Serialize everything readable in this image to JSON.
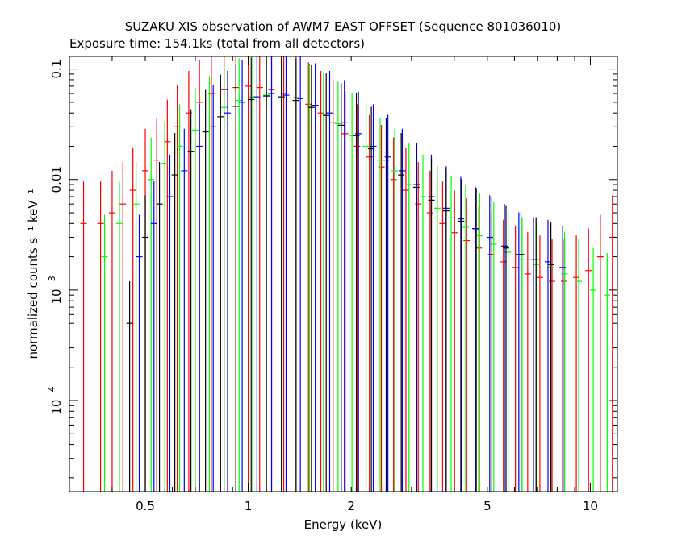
{
  "chart_data": {
    "type": "scatter",
    "title": "SUZAKU XIS observation of AWM7 EAST OFFSET (Sequence 801036010)",
    "subtitle": "Exposure time: 154.1ks (total from all detectors)",
    "xlabel": "Energy (keV)",
    "ylabel": "normalized counts s⁻¹ keV⁻¹",
    "xscale": "log",
    "yscale": "log",
    "xlim": [
      0.3,
      12
    ],
    "ylim": [
      1.5e-05,
      0.13
    ],
    "x_ticks": [
      {
        "value": 0.5,
        "label": "0.5"
      },
      {
        "value": 1,
        "label": "1"
      },
      {
        "value": 2,
        "label": "2"
      },
      {
        "value": 5,
        "label": "5"
      },
      {
        "value": 10,
        "label": "10"
      }
    ],
    "y_ticks": [
      {
        "value": 0.1,
        "label": "0.1",
        "exp": ""
      },
      {
        "value": 0.01,
        "label": "0.01",
        "exp": ""
      },
      {
        "value": 0.001,
        "label": "10",
        "exp": "−3"
      },
      {
        "value": 0.0001,
        "label": "10",
        "exp": "−4"
      }
    ],
    "series": [
      {
        "color": "#ff0000",
        "x": [
          0.33,
          0.37,
          0.4,
          0.43,
          0.46,
          0.5,
          0.54,
          0.58,
          0.62,
          0.67,
          0.72,
          0.78,
          0.85,
          0.92,
          1.0,
          1.08,
          1.17,
          1.27,
          1.38,
          1.5,
          1.63,
          1.77,
          1.92,
          2.08,
          2.26,
          2.45,
          2.66,
          2.89,
          3.14,
          3.4,
          3.7,
          4.01,
          4.35,
          4.72,
          5.13,
          5.57,
          6.04,
          6.56,
          7.12,
          7.73,
          8.39,
          9.1,
          9.88,
          10.7,
          11.6
        ],
        "y": [
          0.004,
          0.004,
          0.005,
          0.006,
          0.008,
          0.012,
          0.015,
          0.022,
          0.03,
          0.04,
          0.05,
          0.06,
          0.065,
          0.068,
          0.07,
          0.068,
          0.065,
          0.06,
          0.055,
          0.048,
          0.04,
          0.033,
          0.026,
          0.02,
          0.016,
          0.013,
          0.01,
          0.008,
          0.006,
          0.005,
          0.004,
          0.0033,
          0.0028,
          0.0024,
          0.0021,
          0.0018,
          0.0016,
          0.0014,
          0.0013,
          0.0012,
          0.0012,
          0.0013,
          0.0015,
          0.002,
          0.003
        ]
      },
      {
        "color": "#00ff00",
        "x": [
          0.38,
          0.42,
          0.47,
          0.52,
          0.57,
          0.63,
          0.7,
          0.77,
          0.85,
          0.94,
          1.03,
          1.13,
          1.25,
          1.37,
          1.51,
          1.66,
          1.83,
          2.01,
          2.21,
          2.43,
          2.68,
          2.95,
          3.24,
          3.57,
          3.92,
          4.32,
          4.75,
          5.22,
          5.75,
          6.32,
          6.95,
          7.65,
          8.41,
          9.25,
          10.2,
          11.2
        ],
        "y": [
          0.002,
          0.004,
          0.006,
          0.01,
          0.014,
          0.02,
          0.028,
          0.036,
          0.045,
          0.052,
          0.056,
          0.058,
          0.056,
          0.052,
          0.046,
          0.039,
          0.032,
          0.025,
          0.02,
          0.015,
          0.012,
          0.009,
          0.007,
          0.0055,
          0.0045,
          0.0037,
          0.0031,
          0.0026,
          0.0022,
          0.0019,
          0.0017,
          0.0016,
          0.0014,
          0.0012,
          0.001,
          0.0009
        ]
      },
      {
        "color": "#0000ff",
        "x": [
          0.48,
          0.53,
          0.59,
          0.65,
          0.72,
          0.79,
          0.87,
          0.96,
          1.06,
          1.17,
          1.29,
          1.42,
          1.57,
          1.73,
          1.91,
          2.1,
          2.32,
          2.56,
          2.82,
          3.11,
          3.43,
          3.79,
          4.18,
          4.61,
          5.08,
          5.61,
          6.18,
          6.82,
          7.52,
          8.3
        ],
        "y": [
          0.002,
          0.004,
          0.007,
          0.012,
          0.02,
          0.03,
          0.04,
          0.05,
          0.056,
          0.06,
          0.058,
          0.054,
          0.047,
          0.04,
          0.033,
          0.026,
          0.02,
          0.016,
          0.012,
          0.009,
          0.007,
          0.0055,
          0.0044,
          0.0036,
          0.003,
          0.0025,
          0.0021,
          0.0019,
          0.0018,
          0.0016
        ]
      },
      {
        "color": "#000000",
        "x": [
          0.45,
          0.5,
          0.55,
          0.61,
          0.68,
          0.75,
          0.83,
          0.92,
          1.02,
          1.13,
          1.25,
          1.38,
          1.53,
          1.69,
          1.87,
          2.07,
          2.29,
          2.53,
          2.8,
          3.1,
          3.43,
          3.79,
          4.19,
          4.64,
          5.13,
          5.67,
          6.27,
          6.94,
          7.67
        ],
        "y": [
          0.0005,
          0.003,
          0.006,
          0.011,
          0.018,
          0.027,
          0.037,
          0.046,
          0.053,
          0.057,
          0.056,
          0.052,
          0.045,
          0.038,
          0.031,
          0.025,
          0.019,
          0.015,
          0.011,
          0.0085,
          0.0065,
          0.0052,
          0.0042,
          0.0035,
          0.0029,
          0.0024,
          0.0021,
          0.0019,
          0.0017
        ]
      }
    ]
  }
}
